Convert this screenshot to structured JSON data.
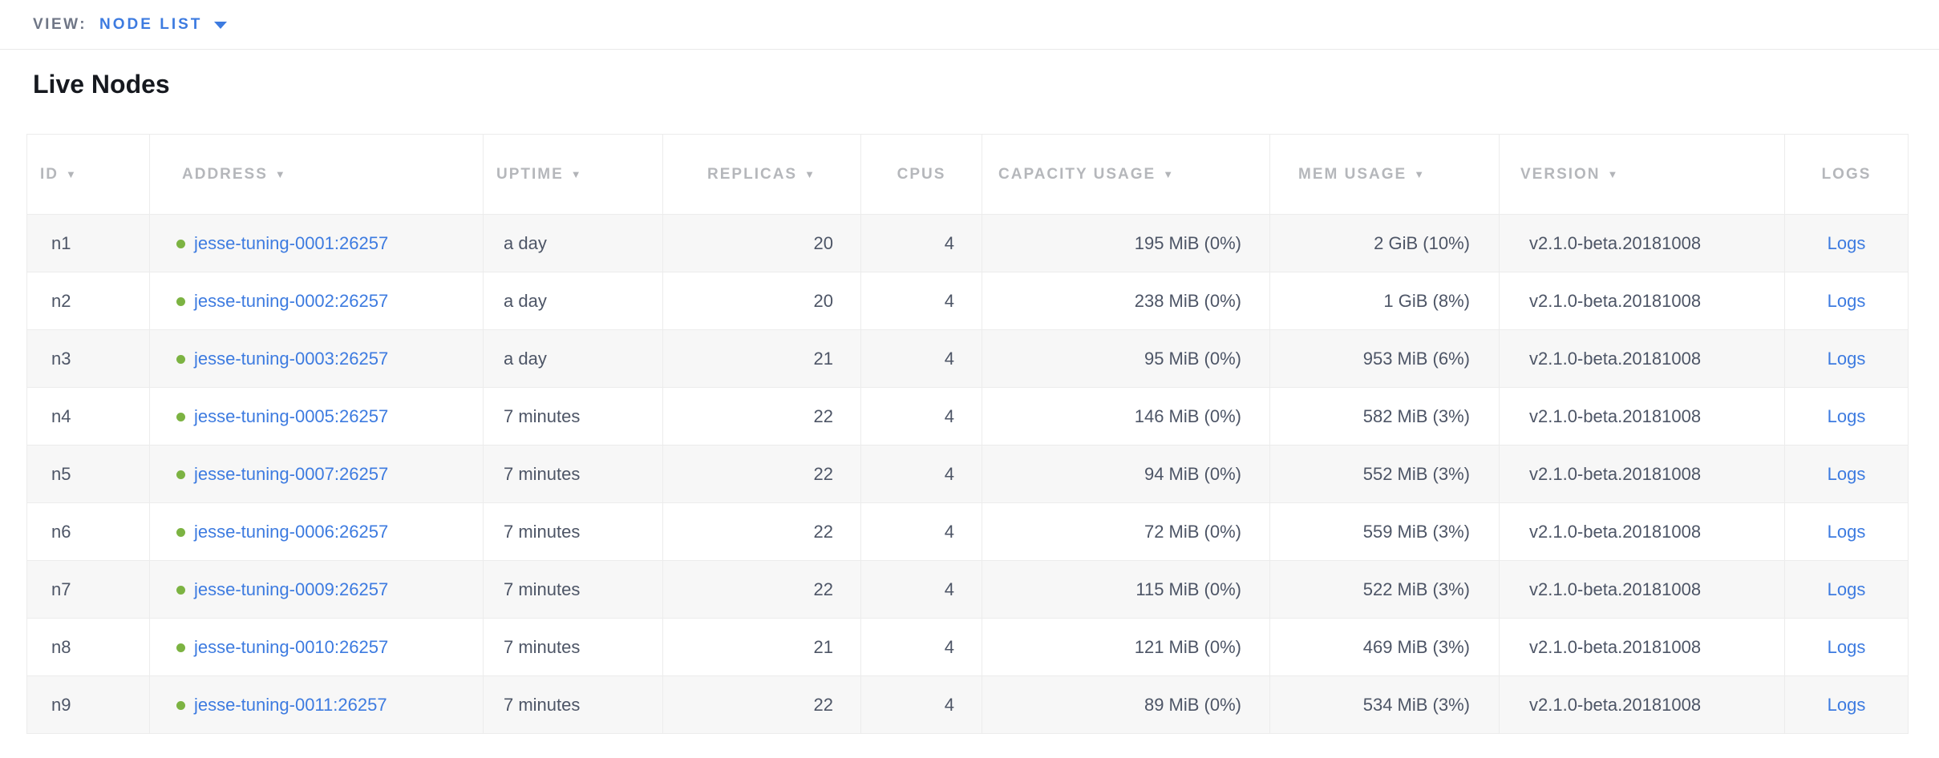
{
  "view_bar": {
    "label": "VIEW:",
    "value": "NODE LIST"
  },
  "page": {
    "title": "Live Nodes"
  },
  "colors": {
    "link": "#3d7be0",
    "node_status_healthy": "#7cb342"
  },
  "table": {
    "sort_indicator": "▼",
    "logs_link_label": "Logs",
    "columns": [
      {
        "key": "id",
        "label": "ID",
        "sorted": true
      },
      {
        "key": "address",
        "label": "ADDRESS",
        "sorted": true
      },
      {
        "key": "uptime",
        "label": "UPTIME",
        "sorted": true
      },
      {
        "key": "replicas",
        "label": "REPLICAS",
        "sorted": true
      },
      {
        "key": "cpus",
        "label": "CPUS",
        "sorted": false
      },
      {
        "key": "capacity",
        "label": "CAPACITY USAGE",
        "sorted": true
      },
      {
        "key": "mem",
        "label": "MEM USAGE",
        "sorted": true
      },
      {
        "key": "version",
        "label": "VERSION",
        "sorted": true
      },
      {
        "key": "logs",
        "label": "LOGS",
        "sorted": false
      }
    ],
    "rows": [
      {
        "id": "n1",
        "status": "healthy",
        "address": "jesse-tuning-0001:26257",
        "uptime": "a day",
        "replicas": "20",
        "cpus": "4",
        "capacity": "195 MiB (0%)",
        "mem": "2 GiB (10%)",
        "version": "v2.1.0-beta.20181008"
      },
      {
        "id": "n2",
        "status": "healthy",
        "address": "jesse-tuning-0002:26257",
        "uptime": "a day",
        "replicas": "20",
        "cpus": "4",
        "capacity": "238 MiB (0%)",
        "mem": "1 GiB (8%)",
        "version": "v2.1.0-beta.20181008"
      },
      {
        "id": "n3",
        "status": "healthy",
        "address": "jesse-tuning-0003:26257",
        "uptime": "a day",
        "replicas": "21",
        "cpus": "4",
        "capacity": "95 MiB (0%)",
        "mem": "953 MiB (6%)",
        "version": "v2.1.0-beta.20181008"
      },
      {
        "id": "n4",
        "status": "healthy",
        "address": "jesse-tuning-0005:26257",
        "uptime": "7 minutes",
        "replicas": "22",
        "cpus": "4",
        "capacity": "146 MiB (0%)",
        "mem": "582 MiB (3%)",
        "version": "v2.1.0-beta.20181008"
      },
      {
        "id": "n5",
        "status": "healthy",
        "address": "jesse-tuning-0007:26257",
        "uptime": "7 minutes",
        "replicas": "22",
        "cpus": "4",
        "capacity": "94 MiB (0%)",
        "mem": "552 MiB (3%)",
        "version": "v2.1.0-beta.20181008"
      },
      {
        "id": "n6",
        "status": "healthy",
        "address": "jesse-tuning-0006:26257",
        "uptime": "7 minutes",
        "replicas": "22",
        "cpus": "4",
        "capacity": "72 MiB (0%)",
        "mem": "559 MiB (3%)",
        "version": "v2.1.0-beta.20181008"
      },
      {
        "id": "n7",
        "status": "healthy",
        "address": "jesse-tuning-0009:26257",
        "uptime": "7 minutes",
        "replicas": "22",
        "cpus": "4",
        "capacity": "115 MiB (0%)",
        "mem": "522 MiB (3%)",
        "version": "v2.1.0-beta.20181008"
      },
      {
        "id": "n8",
        "status": "healthy",
        "address": "jesse-tuning-0010:26257",
        "uptime": "7 minutes",
        "replicas": "21",
        "cpus": "4",
        "capacity": "121 MiB (0%)",
        "mem": "469 MiB (3%)",
        "version": "v2.1.0-beta.20181008"
      },
      {
        "id": "n9",
        "status": "healthy",
        "address": "jesse-tuning-0011:26257",
        "uptime": "7 minutes",
        "replicas": "22",
        "cpus": "4",
        "capacity": "89 MiB (0%)",
        "mem": "534 MiB (3%)",
        "version": "v2.1.0-beta.20181008"
      }
    ]
  }
}
